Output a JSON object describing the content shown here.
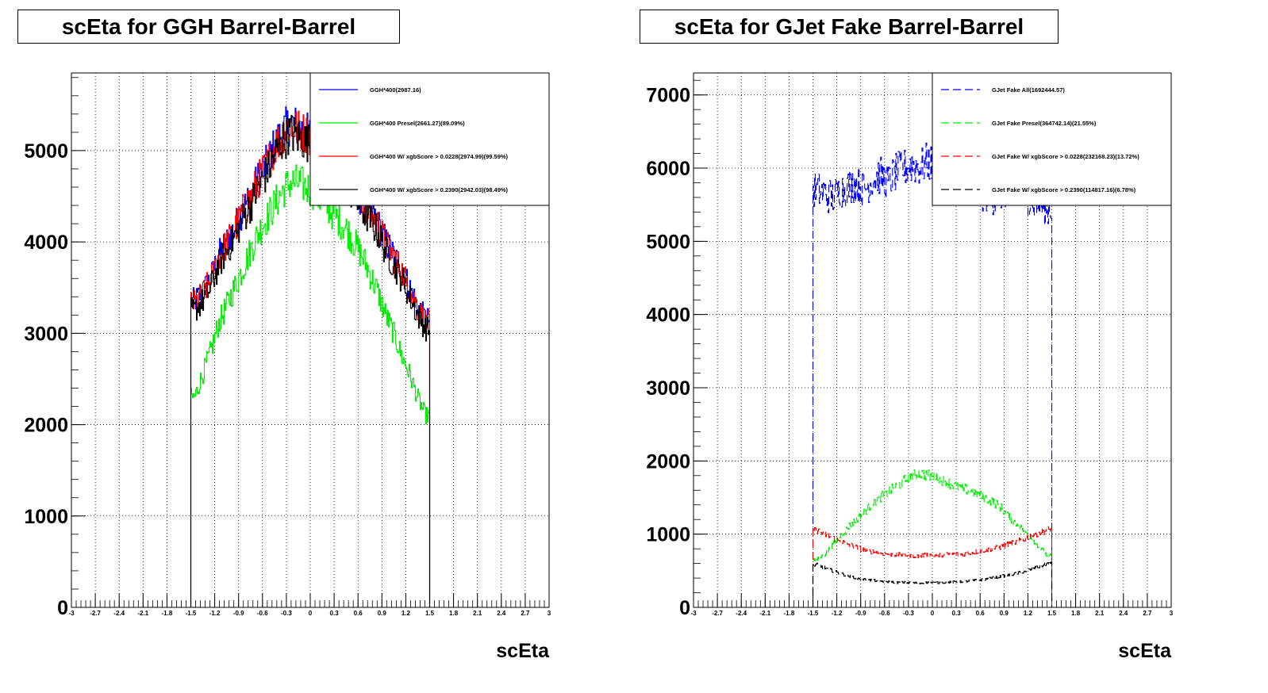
{
  "chart_data": [
    {
      "type": "histogram",
      "title": "scEta for GGH Barrel-Barrel",
      "xlabel": "scEta",
      "ylabel": "",
      "xlim": [
        -3,
        3
      ],
      "ylim": [
        0,
        5850
      ],
      "y_ticks": [
        "0",
        "1000",
        "2000",
        "3000",
        "4000",
        "5000"
      ],
      "x_ticks": [
        "-3",
        "-2.7",
        "-2.4",
        "-2.1",
        "-1.8",
        "-1.5",
        "-1.2",
        "-0.9",
        "-0.6",
        "-0.3",
        "0",
        "0.3",
        "0.6",
        "0.9",
        "1.2",
        "1.5",
        "1.8",
        "2.1",
        "2.4",
        "2.7",
        "3"
      ],
      "grid": true,
      "legend_position": "top-right",
      "x": [
        -1.45,
        -1.35,
        -1.25,
        -1.15,
        -1.05,
        -0.95,
        -0.85,
        -0.75,
        -0.65,
        -0.55,
        -0.45,
        -0.35,
        -0.25,
        -0.15,
        -0.05,
        0.05,
        0.15,
        0.25,
        0.35,
        0.45,
        0.55,
        0.65,
        0.75,
        0.85,
        0.95,
        1.05,
        1.15,
        1.25,
        1.35,
        1.45
      ],
      "series": [
        {
          "name": "GGH*400(2987.16)",
          "color": "#0000ff",
          "style": "solid",
          "values": [
            3350,
            3450,
            3600,
            3850,
            4000,
            4150,
            4350,
            4500,
            4700,
            4850,
            5050,
            5200,
            5300,
            5250,
            5200,
            5150,
            5050,
            4950,
            4850,
            4750,
            4600,
            4450,
            4350,
            4200,
            4000,
            3850,
            3700,
            3500,
            3300,
            3150
          ]
        },
        {
          "name": "GGH*400 Presel(2661.27)(89.09%)",
          "color": "#00ee00",
          "style": "solid",
          "values": [
            2300,
            2550,
            2800,
            3100,
            3300,
            3500,
            3700,
            3900,
            4100,
            4250,
            4400,
            4550,
            4650,
            4650,
            4600,
            4550,
            4450,
            4350,
            4250,
            4150,
            4000,
            3850,
            3650,
            3450,
            3200,
            3000,
            2750,
            2550,
            2300,
            2100
          ]
        },
        {
          "name": "GGH*400 W/ xgbScore > 0.0228(2974.99)(99.59%)",
          "color": "#ff0000",
          "style": "solid",
          "values": [
            3330,
            3430,
            3580,
            3830,
            3980,
            4130,
            4330,
            4480,
            4680,
            4830,
            5030,
            5180,
            5280,
            5230,
            5180,
            5130,
            5030,
            4930,
            4830,
            4730,
            4580,
            4430,
            4330,
            4180,
            3980,
            3830,
            3680,
            3480,
            3280,
            3130
          ]
        },
        {
          "name": "GGH*400 W/ xgbScore > 0.2390(2942.03)(98.49%)",
          "color": "#000000",
          "style": "solid",
          "values": [
            3250,
            3350,
            3500,
            3750,
            3900,
            4050,
            4250,
            4400,
            4600,
            4750,
            4950,
            5100,
            5200,
            5150,
            5100,
            5050,
            4950,
            4850,
            4750,
            4650,
            4500,
            4350,
            4250,
            4100,
            3900,
            3750,
            3600,
            3400,
            3200,
            3050
          ]
        }
      ]
    },
    {
      "type": "histogram",
      "title": "scEta for GJet Fake Barrel-Barrel",
      "xlabel": "scEta",
      "ylabel": "",
      "xlim": [
        -3,
        3
      ],
      "ylim": [
        0,
        7300
      ],
      "y_ticks": [
        "0",
        "1000",
        "2000",
        "3000",
        "4000",
        "5000",
        "6000",
        "7000"
      ],
      "x_ticks": [
        "-3",
        "-2.7",
        "-2.4",
        "-2.1",
        "-1.8",
        "-1.5",
        "-1.2",
        "-0.9",
        "-0.6",
        "-0.3",
        "0",
        "0.3",
        "0.6",
        "0.9",
        "1.2",
        "1.5",
        "1.8",
        "2.1",
        "2.4",
        "2.7",
        "3"
      ],
      "grid": true,
      "legend_position": "top-right",
      "x": [
        -1.45,
        -1.35,
        -1.25,
        -1.15,
        -1.05,
        -0.95,
        -0.85,
        -0.75,
        -0.65,
        -0.55,
        -0.45,
        -0.35,
        -0.25,
        -0.15,
        -0.05,
        0.05,
        0.15,
        0.25,
        0.35,
        0.45,
        0.55,
        0.65,
        0.75,
        0.85,
        0.95,
        1.05,
        1.15,
        1.25,
        1.35,
        1.45
      ],
      "series": [
        {
          "name": "GJet Fake All(1692444.57)",
          "color": "#0000ff",
          "style": "dashed",
          "values": [
            5700,
            5650,
            5600,
            5700,
            5750,
            5800,
            5700,
            5850,
            5900,
            5800,
            5950,
            6000,
            6050,
            6000,
            6100,
            5950,
            5900,
            5850,
            5800,
            5750,
            5700,
            5650,
            5600,
            5650,
            5700,
            5600,
            5650,
            5550,
            5500,
            5450
          ]
        },
        {
          "name": "GJet Fake Presel(364742.14)(21.55%)",
          "color": "#00ee00",
          "style": "dashed",
          "values": [
            650,
            720,
            850,
            980,
            1100,
            1200,
            1300,
            1420,
            1500,
            1580,
            1650,
            1730,
            1800,
            1830,
            1800,
            1780,
            1720,
            1680,
            1640,
            1600,
            1560,
            1500,
            1450,
            1380,
            1250,
            1150,
            1050,
            950,
            820,
            700
          ]
        },
        {
          "name": "GJet Fake W/ xgbScore > 0.0228(232168.23)(13.72%)",
          "color": "#ff0000",
          "style": "dashed",
          "values": [
            1050,
            1000,
            950,
            900,
            860,
            820,
            780,
            760,
            740,
            730,
            720,
            720,
            710,
            700,
            720,
            710,
            720,
            730,
            720,
            740,
            760,
            780,
            800,
            820,
            860,
            890,
            930,
            980,
            1020,
            1060
          ]
        },
        {
          "name": "GJet Fake W/ xgbScore > 0.2390(114817.16)(6.78%)",
          "color": "#000000",
          "style": "dashed",
          "values": [
            580,
            540,
            500,
            460,
            430,
            400,
            380,
            370,
            360,
            350,
            340,
            340,
            335,
            330,
            340,
            335,
            340,
            345,
            350,
            360,
            370,
            380,
            400,
            420,
            440,
            460,
            490,
            520,
            560,
            600
          ]
        }
      ]
    }
  ]
}
